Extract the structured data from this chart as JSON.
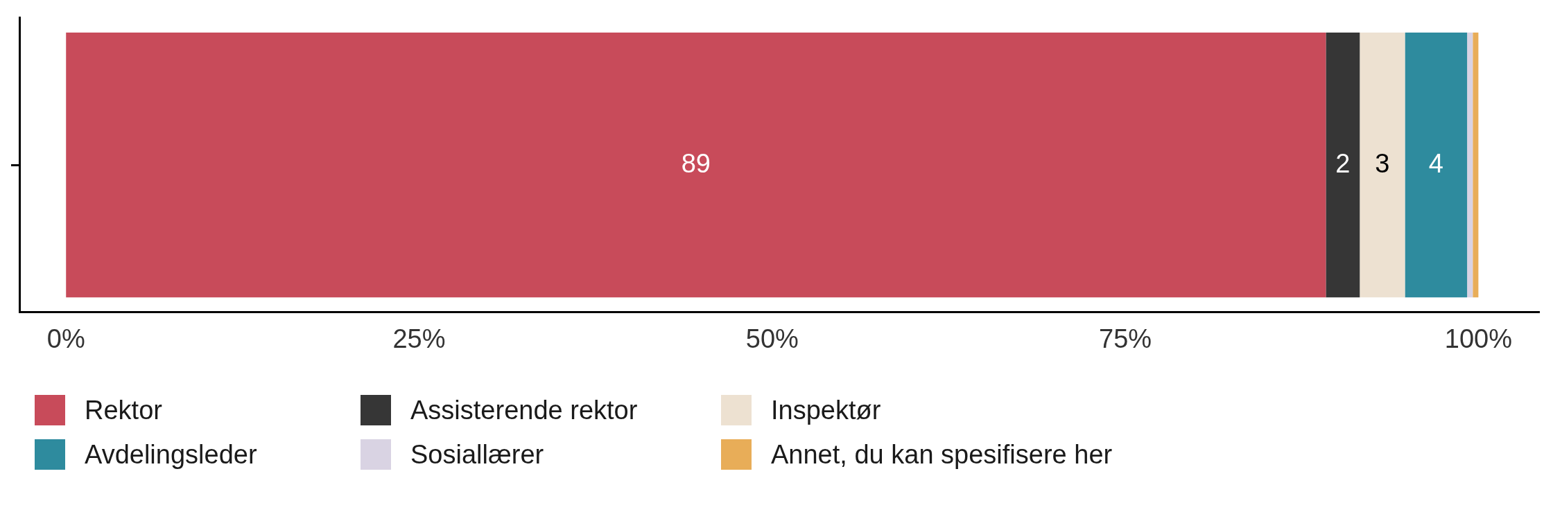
{
  "chart_data": {
    "type": "bar",
    "orientation": "horizontal",
    "stacked": true,
    "categories": [
      null
    ],
    "series": [
      {
        "name": "Rektor",
        "color": "#c84b5a",
        "values": [
          89.2
        ],
        "value_labels": [
          "89"
        ]
      },
      {
        "name": "Assisterende rektor",
        "color": "#363636",
        "values": [
          2.4
        ],
        "value_labels": [
          "2"
        ]
      },
      {
        "name": "Inspektør",
        "color": "#ede1d1",
        "values": [
          3.2
        ],
        "value_labels": [
          "3"
        ]
      },
      {
        "name": "Avdelingsleder",
        "color": "#2e8b9e",
        "values": [
          4.4
        ],
        "value_labels": [
          "4"
        ]
      },
      {
        "name": "Sosiallærer",
        "color": "#d9d3e3",
        "values": [
          0.4
        ],
        "value_labels": [
          null
        ]
      },
      {
        "name": "Annet, du kan spesifisere her",
        "color": "#e8ad58",
        "values": [
          0.4
        ],
        "value_labels": [
          null
        ]
      }
    ],
    "xlim": [
      -3.3,
      104.3
    ],
    "xticks": [
      {
        "value": 0,
        "label": "0%"
      },
      {
        "value": 25,
        "label": "25%"
      },
      {
        "value": 50,
        "label": "50%"
      },
      {
        "value": 75,
        "label": "75%"
      },
      {
        "value": 100,
        "label": "100%"
      }
    ],
    "grid": false,
    "legend": "bottom"
  }
}
